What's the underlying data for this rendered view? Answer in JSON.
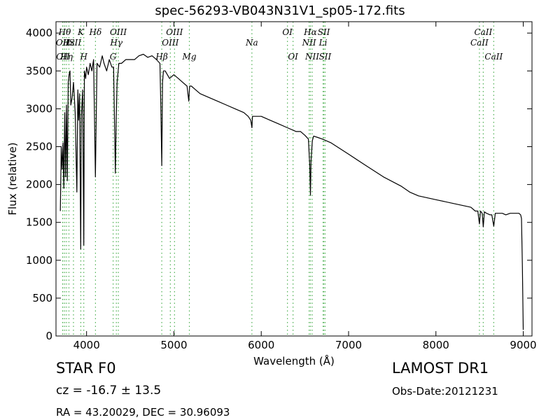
{
  "chart_data": {
    "type": "line",
    "title": "spec-56293-VB043N31V1_sp05-172.fits",
    "xlabel": "Wavelength (Å)",
    "ylabel": "Flux (relative)",
    "xlim": [
      3650,
      9100
    ],
    "ylim": [
      0,
      4150
    ],
    "x_ticks": [
      4000,
      5000,
      6000,
      7000,
      8000,
      9000
    ],
    "x_tick_labels": [
      "4000",
      "5000",
      "6000",
      "7000",
      "8000",
      "9000"
    ],
    "y_ticks": [
      0,
      500,
      1000,
      1500,
      2000,
      2500,
      3000,
      3500,
      4000
    ],
    "y_tick_labels": [
      "0",
      "500",
      "1000",
      "1500",
      "2000",
      "2500",
      "3000",
      "3500",
      "4000"
    ],
    "grid": false,
    "series": [
      {
        "color": "#000000",
        "x": [
          3700,
          3710,
          3720,
          3730,
          3740,
          3750,
          3760,
          3770,
          3780,
          3790,
          3800,
          3810,
          3820,
          3835,
          3850,
          3870,
          3889,
          3900,
          3910,
          3920,
          3933,
          3940,
          3955,
          3968,
          3975,
          3990,
          4000,
          4020,
          4040,
          4060,
          4080,
          4101,
          4120,
          4150,
          4180,
          4200,
          4230,
          4260,
          4290,
          4310,
          4330,
          4340,
          4350,
          4370,
          4400,
          4450,
          4500,
          4550,
          4600,
          4650,
          4700,
          4750,
          4800,
          4840,
          4850,
          4861,
          4870,
          4880,
          4900,
          4950,
          5000,
          5050,
          5100,
          5150,
          5170,
          5180,
          5200,
          5250,
          5300,
          5400,
          5500,
          5600,
          5700,
          5800,
          5850,
          5880,
          5893,
          5900,
          5920,
          6000,
          6100,
          6200,
          6300,
          6400,
          6450,
          6500,
          6540,
          6555,
          6563,
          6570,
          6585,
          6600,
          6650,
          6700,
          6800,
          7000,
          7200,
          7400,
          7600,
          7700,
          7800,
          8000,
          8200,
          8400,
          8450,
          8480,
          8498,
          8510,
          8530,
          8542,
          8555,
          8580,
          8620,
          8640,
          8662,
          8680,
          8720,
          8760,
          8800,
          8850,
          8900,
          8950,
          8970,
          8980,
          8990,
          9000
        ],
        "y": [
          1650,
          2500,
          2200,
          2550,
          1950,
          2950,
          2100,
          3050,
          2050,
          3350,
          3450,
          3500,
          3050,
          3150,
          3350,
          2950,
          1900,
          3250,
          2850,
          3200,
          1150,
          2900,
          3250,
          1200,
          3500,
          3400,
          3550,
          3450,
          3600,
          3500,
          3650,
          2100,
          3600,
          3550,
          3700,
          3600,
          3500,
          3650,
          3550,
          3550,
          2150,
          2900,
          3350,
          3600,
          3600,
          3650,
          3650,
          3650,
          3700,
          3720,
          3680,
          3700,
          3650,
          3600,
          3050,
          2250,
          3350,
          3500,
          3500,
          3400,
          3450,
          3400,
          3350,
          3300,
          3100,
          3300,
          3300,
          3250,
          3200,
          3150,
          3100,
          3050,
          3000,
          2950,
          2900,
          2850,
          2750,
          2900,
          2900,
          2900,
          2850,
          2800,
          2750,
          2700,
          2700,
          2650,
          2600,
          2250,
          1860,
          2300,
          2580,
          2640,
          2620,
          2600,
          2550,
          2400,
          2250,
          2100,
          1980,
          1900,
          1850,
          1800,
          1750,
          1700,
          1650,
          1650,
          1480,
          1650,
          1620,
          1440,
          1640,
          1620,
          1600,
          1600,
          1450,
          1620,
          1620,
          1620,
          1600,
          1620,
          1620,
          1620,
          1600,
          1550,
          900,
          80
        ]
      }
    ],
    "lines": [
      {
        "wl": 3726,
        "label": "OII",
        "row": 2
      },
      {
        "wl": 3729,
        "label": "OII",
        "row": 3
      },
      {
        "wl": 3750,
        "label": "Hθ",
        "row": 1
      },
      {
        "wl": 3771,
        "label": "Hη",
        "row": 3
      },
      {
        "wl": 3798,
        "label": "Hε",
        "row": 2
      },
      {
        "wl": 3850,
        "label": "ISII",
        "row": 2
      },
      {
        "wl": 3934,
        "label": "K",
        "row": 1
      },
      {
        "wl": 3968,
        "label": "H",
        "row": 3
      },
      {
        "wl": 4102,
        "label": "Hδ",
        "row": 1
      },
      {
        "wl": 4304,
        "label": "G",
        "row": 3
      },
      {
        "wl": 4341,
        "label": "Hγ",
        "row": 2
      },
      {
        "wl": 4364,
        "label": "OIII",
        "row": 1
      },
      {
        "wl": 4861,
        "label": "Hβ",
        "row": 3
      },
      {
        "wl": 4959,
        "label": "OIII",
        "row": 2
      },
      {
        "wl": 5007,
        "label": "OIII",
        "row": 1
      },
      {
        "wl": 5177,
        "label": "Mg",
        "row": 3
      },
      {
        "wl": 5893,
        "label": "Na",
        "row": 2
      },
      {
        "wl": 6300,
        "label": "OI",
        "row": 1
      },
      {
        "wl": 6364,
        "label": "OI",
        "row": 3
      },
      {
        "wl": 6548,
        "label": "NII",
        "row": 2
      },
      {
        "wl": 6563,
        "label": "Hα",
        "row": 1
      },
      {
        "wl": 6583,
        "label": "NII",
        "row": 3
      },
      {
        "wl": 6708,
        "label": "Li",
        "row": 2
      },
      {
        "wl": 6716,
        "label": "SII",
        "row": 1
      },
      {
        "wl": 6731,
        "label": "SII",
        "row": 3
      },
      {
        "wl": 8498,
        "label": "CaII",
        "row": 2
      },
      {
        "wl": 8542,
        "label": "CaII",
        "row": 1
      },
      {
        "wl": 8662,
        "label": "CaII",
        "row": 3
      }
    ]
  },
  "info": {
    "object_type": "STAR   F0",
    "survey": "LAMOST DR1",
    "redshift": "cz = -16.7  ± 13.5",
    "obs_date": "Obs-Date:20121231",
    "coords": "RA = 43.20029, DEC = 30.96093"
  },
  "colors": {
    "spectrum": "#000000",
    "line_markers": "#4caf50"
  }
}
